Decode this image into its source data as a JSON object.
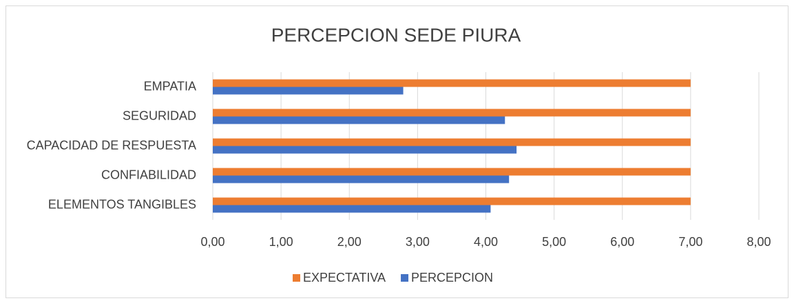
{
  "chart_data": {
    "type": "bar",
    "orientation": "horizontal",
    "title": "PERCEPCION SEDE PIURA",
    "categories": [
      "EMPATIA",
      "SEGURIDAD",
      "CAPACIDAD DE RESPUESTA",
      "CONFIABILIDAD",
      "ELEMENTOS TANGIBLES"
    ],
    "series": [
      {
        "name": "EXPECTATIVA",
        "color": "#ed7d31",
        "values": [
          7,
          7,
          7,
          7,
          7
        ]
      },
      {
        "name": "PERCEPCION",
        "color": "#4472c4",
        "values": [
          2.79,
          4.28,
          4.45,
          4.34,
          4.07
        ]
      }
    ],
    "xlim": [
      0,
      8
    ],
    "xticks": [
      {
        "value": 0,
        "label": "0,00"
      },
      {
        "value": 1,
        "label": "1,00"
      },
      {
        "value": 2,
        "label": "2,00"
      },
      {
        "value": 3,
        "label": "3,00"
      },
      {
        "value": 4,
        "label": "4,00"
      },
      {
        "value": 5,
        "label": "5,00"
      },
      {
        "value": 6,
        "label": "6,00"
      },
      {
        "value": 7,
        "label": "7,00"
      },
      {
        "value": 8,
        "label": "8,00"
      }
    ],
    "grid": true,
    "legend": "bottom"
  }
}
